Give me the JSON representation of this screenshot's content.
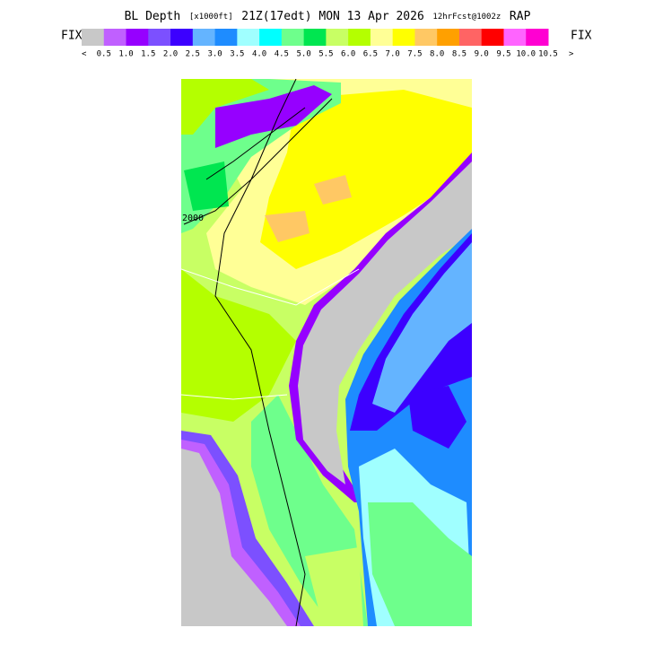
{
  "header": {
    "title_parts": [
      "BL Depth",
      "[x1000ft]",
      "21Z(17edt) MON 13 Apr 2026",
      "12hrFcst@1002z",
      "RAP"
    ],
    "left_label": "FIX",
    "right_label": "FIX"
  },
  "colorbar": {
    "colors": [
      "#c8c8c8",
      "#c060ff",
      "#9600ff",
      "#7c50ff",
      "#3c00ff",
      "#64b4ff",
      "#1e8cff",
      "#a0ffff",
      "#00ffff",
      "#6eff8c",
      "#00e650",
      "#c8ff64",
      "#b4ff00",
      "#ffff96",
      "#ffff00",
      "#ffc864",
      "#ffa000",
      "#ff6464",
      "#ff0000",
      "#ff64ff",
      "#ff00d2"
    ],
    "low_mark": "<",
    "high_mark": ">",
    "labels": [
      "0.5",
      "1.0",
      "1.5",
      "2.0",
      "2.5",
      "3.0",
      "3.5",
      "4.0",
      "4.5",
      "5.0",
      "5.5",
      "6.0",
      "6.5",
      "7.0",
      "7.5",
      "8.0",
      "8.5",
      "9.0",
      "9.5",
      "10.0",
      "10.5"
    ]
  },
  "map": {
    "contour_label": "2000"
  }
}
